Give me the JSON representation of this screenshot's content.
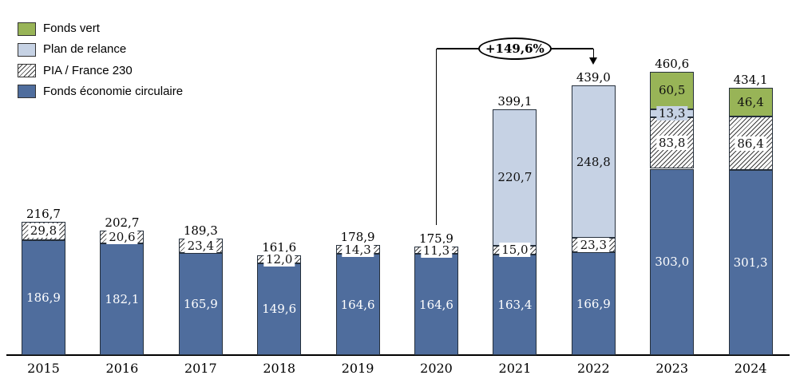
{
  "colors": {
    "green": "#98b457",
    "light_blue": "#c6d2e4",
    "dark_blue": "#4f6d9d",
    "bar_border": "#26303c"
  },
  "legend": {
    "items": [
      {
        "label": "Fonds vert",
        "swatch": "green"
      },
      {
        "label": "Plan de relance",
        "swatch": "light_blue"
      },
      {
        "label": "PIA / France 230",
        "swatch": "hatch"
      },
      {
        "label": "Fonds économie circulaire",
        "swatch": "dark_blue"
      }
    ]
  },
  "chart_data": {
    "type": "bar",
    "subtype": "stacked-vertical",
    "categories": [
      "2015",
      "2016",
      "2017",
      "2018",
      "2019",
      "2020",
      "2021",
      "2022",
      "2023",
      "2024"
    ],
    "series": [
      {
        "name": "Fonds économie circulaire",
        "color": "dark_blue",
        "label_style": "white-on-dark",
        "values": [
          186.9,
          182.1,
          165.9,
          149.6,
          164.6,
          164.6,
          163.4,
          166.9,
          303.0,
          301.3
        ]
      },
      {
        "name": "PIA / France 230",
        "fill": "hatch",
        "label_style": "boxed-white",
        "values": [
          29.8,
          20.6,
          23.4,
          12.0,
          14.3,
          11.3,
          15.0,
          23.3,
          83.8,
          86.4
        ]
      },
      {
        "name": "Plan de relance",
        "color": "light_blue",
        "label_style": "boxed-lightblue",
        "values": [
          0,
          0,
          0,
          0,
          0,
          0,
          220.7,
          248.8,
          13.3,
          0
        ]
      },
      {
        "name": "Fonds vert",
        "color": "green",
        "label_style": "dark-plain",
        "values": [
          0,
          0,
          0,
          0,
          0,
          0,
          0,
          0,
          60.5,
          46.4
        ]
      }
    ],
    "totals": [
      216.7,
      202.7,
      189.3,
      161.6,
      178.9,
      175.9,
      399.1,
      439.0,
      460.6,
      434.1
    ],
    "annotation": {
      "text": "+149,6%",
      "from_category": "2020",
      "to_category": "2022",
      "from_index": 5,
      "to_index": 7
    },
    "decimal_separator": ",",
    "ylim": [
      0,
      500
    ],
    "grid": false,
    "legend_position": "top-left"
  }
}
